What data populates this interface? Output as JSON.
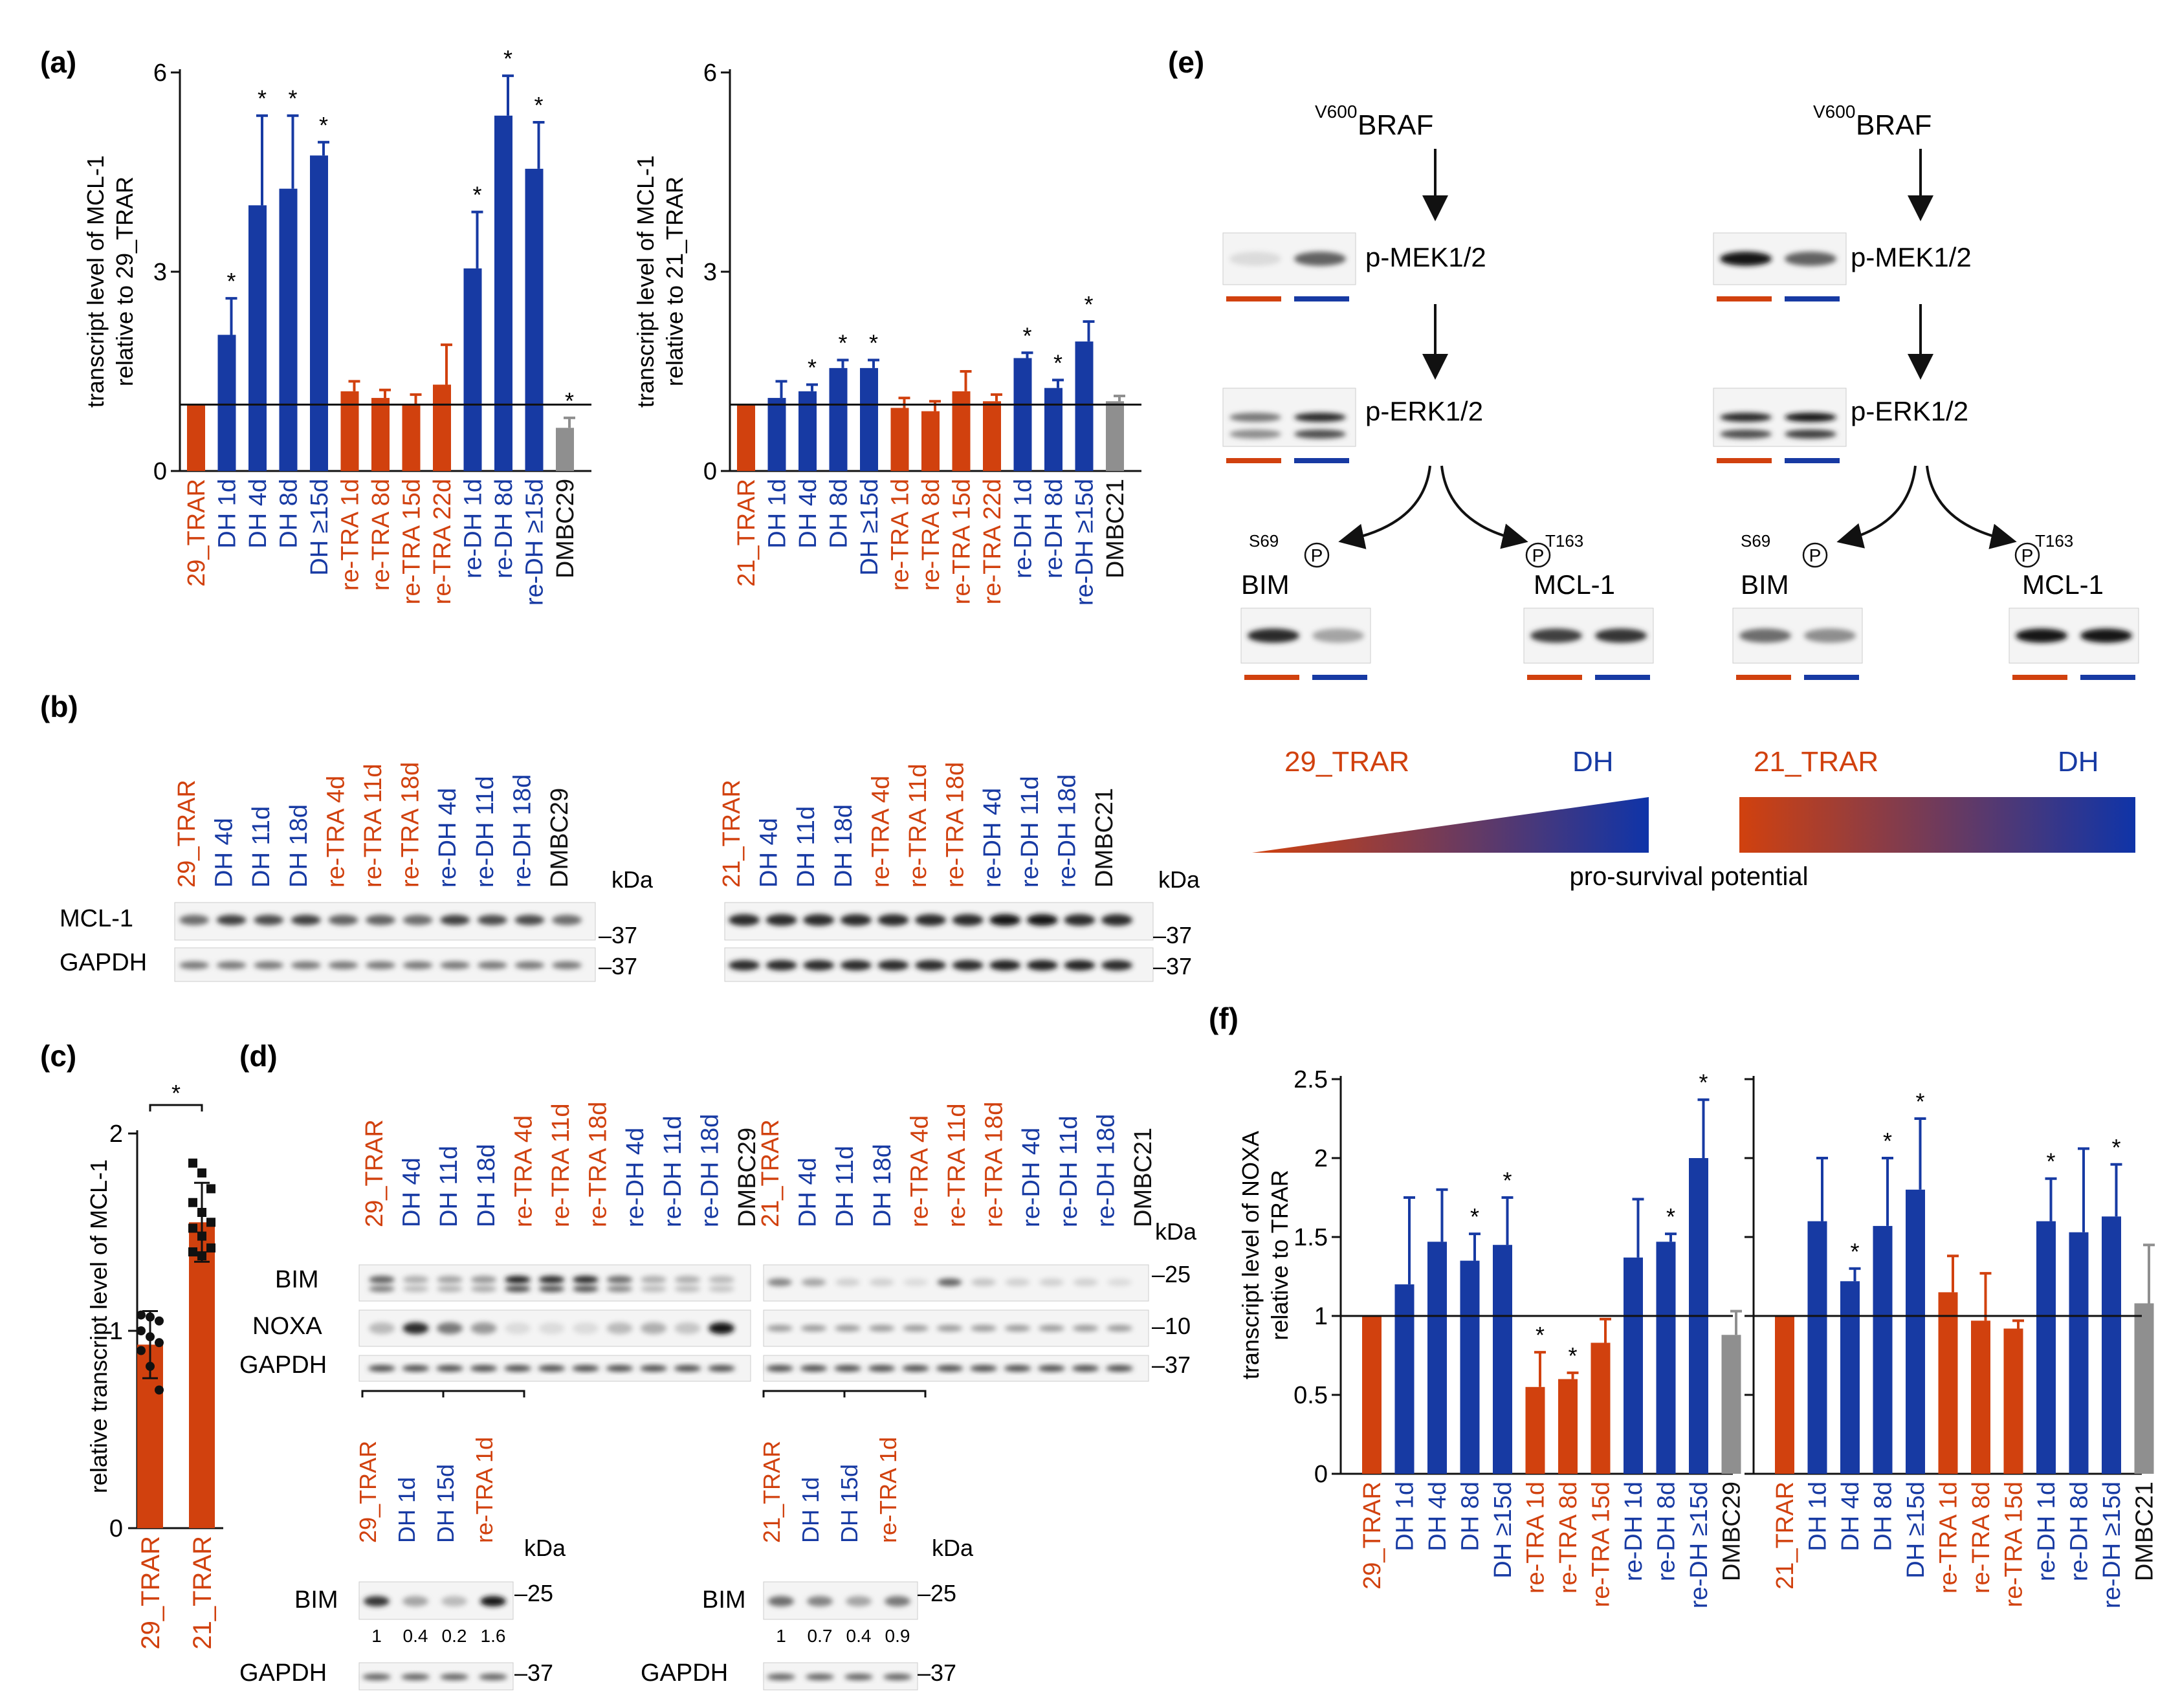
{
  "colors": {
    "red": "#d1410e",
    "blue": "#173aa3",
    "gray": "#8f8f8f",
    "black": "#111111"
  },
  "panel_labels": {
    "a": "(a)",
    "b": "(b)",
    "c": "(c)",
    "d": "(d)",
    "e": "(e)",
    "f": "(f)"
  },
  "panel_a": {
    "ylabel_left": [
      "transcript level of MCL-1",
      "relative to 29_TRAR"
    ],
    "ylabel_right": [
      "transcript level of MCL-1",
      "relative to 21_TRAR"
    ]
  },
  "panel_c": {
    "ylabel": "relative transcript level of MCL-1",
    "sig": "*"
  },
  "panel_f": {
    "ylabel": [
      "transcript level of NOXA",
      "relative to TRAR"
    ]
  },
  "panel_b": {
    "left_labels": [
      {
        "text": "29_TRAR",
        "c": "red"
      },
      {
        "text": "DH 4d",
        "c": "blue"
      },
      {
        "text": "DH 11d",
        "c": "blue"
      },
      {
        "text": "DH 18d",
        "c": "blue"
      },
      {
        "text": "re-TRA 4d",
        "c": "red"
      },
      {
        "text": "re-TRA 11d",
        "c": "red"
      },
      {
        "text": "re-TRA 18d",
        "c": "red"
      },
      {
        "text": "re-DH 4d",
        "c": "blue"
      },
      {
        "text": "re-DH 11d",
        "c": "blue"
      },
      {
        "text": "re-DH 18d",
        "c": "blue"
      },
      {
        "text": "DMBC29",
        "c": "black"
      }
    ],
    "right_labels": [
      {
        "text": "21_TRAR",
        "c": "red"
      },
      {
        "text": "DH 4d",
        "c": "blue"
      },
      {
        "text": "DH 11d",
        "c": "blue"
      },
      {
        "text": "DH 18d",
        "c": "blue"
      },
      {
        "text": "re-TRA 4d",
        "c": "red"
      },
      {
        "text": "re-TRA 11d",
        "c": "red"
      },
      {
        "text": "re-TRA 18d",
        "c": "red"
      },
      {
        "text": "re-DH 4d",
        "c": "blue"
      },
      {
        "text": "re-DH 11d",
        "c": "blue"
      },
      {
        "text": "re-DH 18d",
        "c": "blue"
      },
      {
        "text": "DMBC21",
        "c": "black"
      }
    ],
    "kda": "kDa",
    "row_labels": [
      "MCL-1",
      "GAPDH"
    ],
    "markers": [
      "–37",
      "–37"
    ]
  },
  "panel_d": {
    "row_labels": [
      "BIM",
      "NOXA",
      "GAPDH"
    ],
    "markers": [
      "–25",
      "–10",
      "–37"
    ],
    "kda": "kDa",
    "sub_left_labels": [
      {
        "text": "29_TRAR",
        "c": "red"
      },
      {
        "text": "DH 1d",
        "c": "blue"
      },
      {
        "text": "DH 15d",
        "c": "blue"
      },
      {
        "text": "re-TRA 1d",
        "c": "red"
      }
    ],
    "sub_right_labels": [
      {
        "text": "21_TRAR",
        "c": "red"
      },
      {
        "text": "DH 1d",
        "c": "blue"
      },
      {
        "text": "DH 15d",
        "c": "blue"
      },
      {
        "text": "re-TRA 1d",
        "c": "red"
      }
    ],
    "sub_row_labels": [
      "BIM",
      "GAPDH"
    ],
    "sub_markers": [
      "–25",
      "–37"
    ],
    "quant_left": [
      "1",
      "0.4",
      "0.2",
      "1.6"
    ],
    "quant_right": [
      "1",
      "0.7",
      "0.4",
      "0.9"
    ]
  },
  "panel_e": {
    "braf_sup": "V600",
    "braf": "BRAF",
    "pmek": "p-MEK1/2",
    "perk": "p-ERK1/2",
    "bim": "BIM",
    "mcl1": "MCL-1",
    "s69": "S69",
    "t163": "T163",
    "p": "P",
    "gradient_left": [
      "29_TRAR",
      "DH"
    ],
    "gradient_right": [
      "21_TRAR",
      "DH"
    ],
    "caption": "pro-survival potential"
  },
  "chart_data": [
    {
      "id": "a-left",
      "type": "bar",
      "title": "",
      "ylabel": "transcript level of MCL-1 relative to 29_TRAR",
      "ylim": [
        0,
        6
      ],
      "yticks": [
        "0",
        "3",
        "6"
      ],
      "categories": [
        "29_TRAR",
        "DH 1d",
        "DH 4d",
        "DH 8d",
        "DH ≥15d",
        "re-TRA 1d",
        "re-TRA 8d",
        "re-TRA 15d",
        "re-TRA 22d",
        "re-DH 1d",
        "re-DH 8d",
        "re-DH ≥15d",
        "DMBC29"
      ],
      "values": [
        1.0,
        2.05,
        4.0,
        4.25,
        4.75,
        1.2,
        1.1,
        1.0,
        1.3,
        3.05,
        5.35,
        4.55,
        0.65
      ],
      "errors": [
        0,
        0.55,
        1.35,
        1.1,
        0.2,
        0.15,
        0.12,
        0.15,
        0.6,
        0.85,
        0.6,
        0.7,
        0.15
      ],
      "colors": [
        "red",
        "blue",
        "blue",
        "blue",
        "blue",
        "red",
        "red",
        "red",
        "red",
        "blue",
        "blue",
        "blue",
        "gray"
      ],
      "significant": [
        false,
        true,
        true,
        true,
        true,
        false,
        false,
        false,
        false,
        true,
        true,
        true,
        true
      ]
    },
    {
      "id": "a-right",
      "type": "bar",
      "title": "",
      "ylabel": "transcript level of MCL-1 relative to 21_TRAR",
      "ylim": [
        0,
        6
      ],
      "yticks": [
        "0",
        "3",
        "6"
      ],
      "categories": [
        "21_TRAR",
        "DH 1d",
        "DH 4d",
        "DH 8d",
        "DH ≥15d",
        "re-TRA 1d",
        "re-TRA 8d",
        "re-TRA 15d",
        "re-TRA 22d",
        "re-DH 1d",
        "re-DH 8d",
        "re-DH ≥15d",
        "DMBC21"
      ],
      "values": [
        1.0,
        1.1,
        1.2,
        1.55,
        1.55,
        0.95,
        0.9,
        1.2,
        1.05,
        1.7,
        1.25,
        1.95,
        1.05
      ],
      "errors": [
        0,
        0.25,
        0.1,
        0.12,
        0.12,
        0.15,
        0.15,
        0.3,
        0.1,
        0.08,
        0.12,
        0.3,
        0.08
      ],
      "colors": [
        "red",
        "blue",
        "blue",
        "blue",
        "blue",
        "red",
        "red",
        "red",
        "red",
        "blue",
        "blue",
        "blue",
        "gray"
      ],
      "significant": [
        false,
        false,
        true,
        true,
        true,
        false,
        false,
        false,
        false,
        true,
        true,
        true,
        false
      ]
    },
    {
      "id": "c",
      "type": "bar",
      "title": "",
      "ylabel": "relative transcript level of MCL-1",
      "ylim": [
        0,
        2
      ],
      "yticks": [
        "0",
        "1",
        "2"
      ],
      "categories": [
        "29_TRAR",
        "21_TRAR"
      ],
      "values": [
        0.93,
        1.55
      ],
      "errors": [
        0.17,
        0.2
      ],
      "colors": [
        "red",
        "red"
      ],
      "points": [
        [
          1.08,
          1.07,
          1.05,
          1.0,
          0.97,
          0.94,
          0.9,
          0.82,
          0.7
        ],
        [
          1.85,
          1.8,
          1.72,
          1.65,
          1.6,
          1.55,
          1.52,
          1.48,
          1.42,
          1.4,
          1.38
        ]
      ]
    },
    {
      "id": "f-left",
      "type": "bar",
      "title": "",
      "ylabel": "transcript level of NOXA relative to TRAR",
      "ylim": [
        0,
        2.5
      ],
      "yticks": [
        "0",
        "0.5",
        "1",
        "1.5",
        "2",
        "2.5"
      ],
      "categories": [
        "29_TRAR",
        "DH 1d",
        "DH 4d",
        "DH 8d",
        "DH ≥15d",
        "re-TRA 1d",
        "re-TRA 8d",
        "re-TRA 15d",
        "re-DH 1d",
        "re-DH 8d",
        "re-DH ≥15d",
        "DMBC29"
      ],
      "values": [
        1.0,
        1.2,
        1.47,
        1.35,
        1.45,
        0.55,
        0.6,
        0.83,
        1.37,
        1.47,
        2.0,
        0.88
      ],
      "errors": [
        0,
        0.55,
        0.33,
        0.17,
        0.3,
        0.22,
        0.04,
        0.15,
        0.37,
        0.05,
        0.37,
        0.15
      ],
      "colors": [
        "red",
        "blue",
        "blue",
        "blue",
        "blue",
        "red",
        "red",
        "red",
        "blue",
        "blue",
        "blue",
        "gray"
      ],
      "significant": [
        false,
        false,
        false,
        true,
        true,
        true,
        true,
        false,
        false,
        true,
        true,
        false
      ]
    },
    {
      "id": "f-right",
      "type": "bar",
      "title": "",
      "ylabel": "",
      "ylim": [
        0,
        2.5
      ],
      "yticks": [],
      "categories": [
        "21_TRAR",
        "DH 1d",
        "DH 4d",
        "DH 8d",
        "DH ≥15d",
        "re-TRA 1d",
        "re-TRA 8d",
        "re-TRA 15d",
        "re-DH 1d",
        "re-DH 8d",
        "re-DH ≥15d",
        "DMBC21"
      ],
      "values": [
        1.0,
        1.6,
        1.22,
        1.57,
        1.8,
        1.15,
        0.97,
        0.92,
        1.6,
        1.53,
        1.63,
        1.08
      ],
      "errors": [
        0,
        0.4,
        0.08,
        0.43,
        0.45,
        0.23,
        0.3,
        0.05,
        0.27,
        0.53,
        0.33,
        0.37
      ],
      "colors": [
        "red",
        "blue",
        "blue",
        "blue",
        "blue",
        "red",
        "red",
        "red",
        "blue",
        "blue",
        "blue",
        "gray"
      ],
      "significant": [
        false,
        false,
        true,
        true,
        true,
        false,
        false,
        false,
        true,
        false,
        true,
        false
      ]
    }
  ]
}
